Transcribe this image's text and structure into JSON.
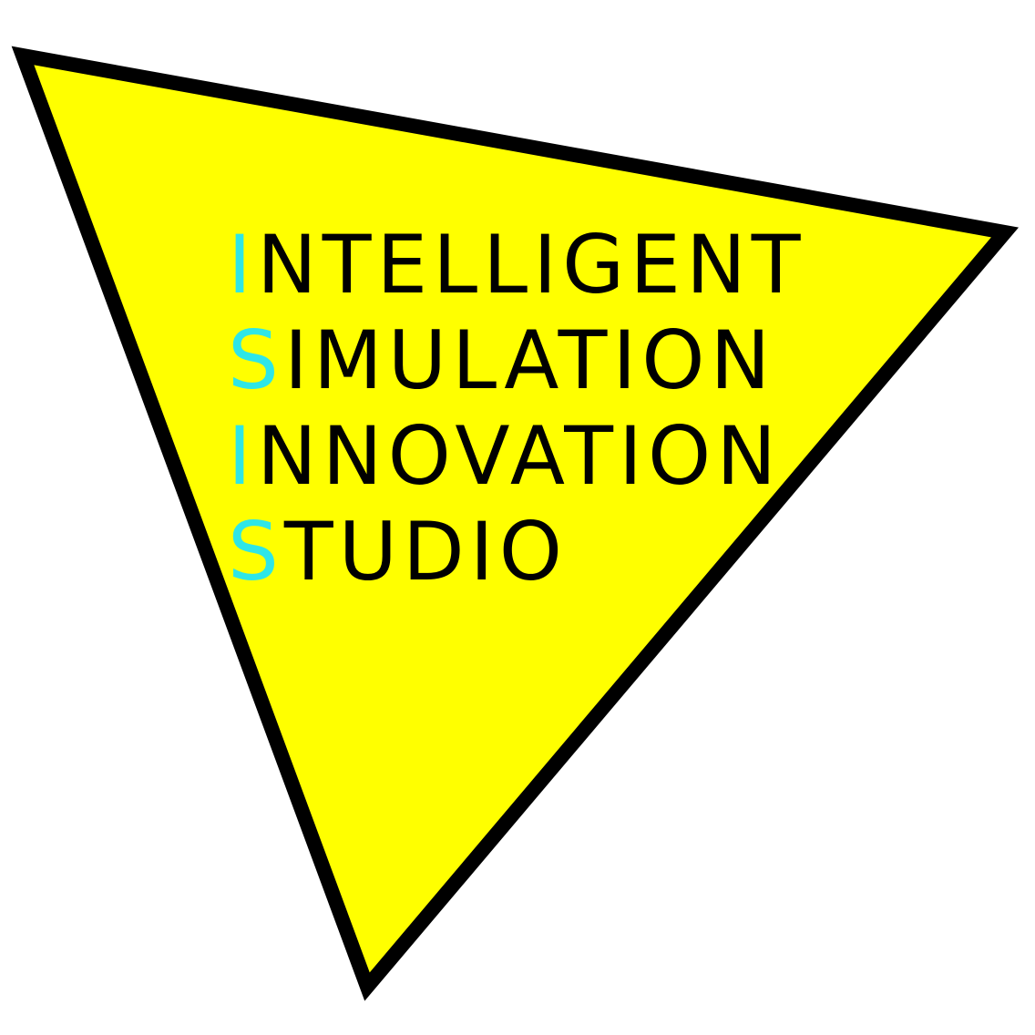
{
  "logo": {
    "lines": [
      {
        "initial": "I",
        "rest": "NTELLIGENT"
      },
      {
        "initial": "S",
        "rest": "IMULATION"
      },
      {
        "initial": "I",
        "rest": "NNOVATION"
      },
      {
        "initial": "S",
        "rest": "TUDIO"
      }
    ],
    "colors": {
      "background": "#ffffff",
      "triangle_fill": "#ffff00",
      "triangle_stroke": "#000000",
      "text": "#000000",
      "initial_accent": "#2ee6e6"
    }
  }
}
